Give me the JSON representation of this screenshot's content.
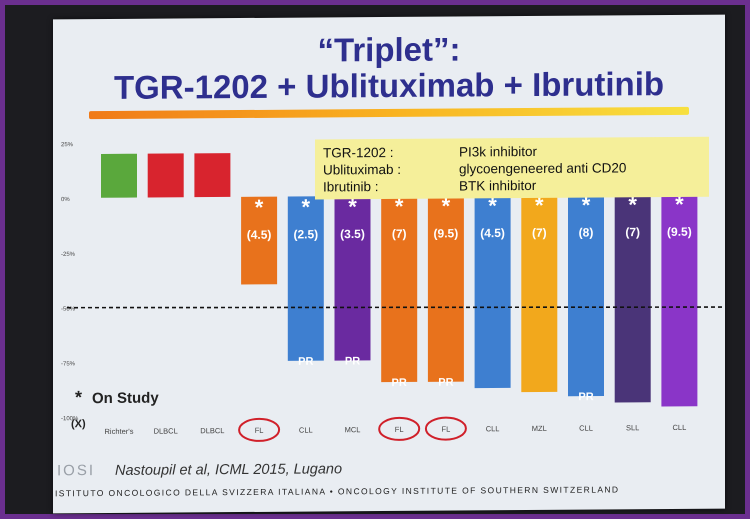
{
  "title_line1": "“Triplet”:",
  "title_line2": "TGR-1202 + Ublituximab + Ibrutinib",
  "legend": [
    {
      "name": "TGR-1202 :",
      "desc": "PI3k inhibitor"
    },
    {
      "name": "Ublituximab :",
      "desc": "glycoengeneered anti CD20"
    },
    {
      "name": "Ibrutinib :",
      "desc": "BTK inhibitor"
    }
  ],
  "on_study_star": "*",
  "on_study_label": "On Study",
  "citation": "Nastoupil et al, ICML 2015, Lugano",
  "logo_text": "IOSI",
  "institute": "ISTITUTO ONCOLOGICO DELLA SVIZZERA ITALIANA  •  ONCOLOGY INSTITUTE OF SOUTHERN SWITZERLAND",
  "chart_data": {
    "type": "bar",
    "ylim": [
      -100,
      25
    ],
    "yticks": [
      "25%",
      "0%",
      "-25%",
      "-50%",
      "-75%",
      "-100%"
    ],
    "ytick_values": [
      25,
      0,
      -25,
      -50,
      -75,
      -100
    ],
    "reference_line": -50,
    "categories": [
      "Richter's",
      "DLBCL",
      "DLBCL",
      "FL",
      "CLL",
      "MCL",
      "FL",
      "FL",
      "CLL",
      "MZL",
      "CLL",
      "SLL",
      "CLL"
    ],
    "circled": [
      false,
      false,
      false,
      true,
      false,
      false,
      true,
      true,
      false,
      false,
      false,
      false,
      false
    ],
    "values": [
      20,
      20,
      20,
      -40,
      -75,
      -75,
      -85,
      -85,
      -88,
      -90,
      -92,
      -95,
      -97
    ],
    "colors": [
      "#5aa83c",
      "#d8242e",
      "#d8242e",
      "#e8721c",
      "#3e7fd0",
      "#6a2aa0",
      "#e8721c",
      "#e8721c",
      "#3e7fd0",
      "#f2a81c",
      "#3e7fd0",
      "#4a3478",
      "#8a35c8"
    ],
    "on_study": [
      false,
      false,
      false,
      true,
      true,
      true,
      true,
      true,
      true,
      true,
      true,
      true,
      true
    ],
    "bar_labels": [
      "",
      "",
      "",
      "(4.5)",
      "(2.5)",
      "(3.5)",
      "(7)",
      "(9.5)",
      "(4.5)",
      "(7)",
      "(8)",
      "(7)",
      "(9.5)"
    ],
    "bottom_labels": [
      "",
      "",
      "",
      "",
      "PR",
      "PR",
      "PR",
      "PR",
      "",
      "",
      "PR",
      "",
      ""
    ],
    "x_prefix": "(X)"
  }
}
